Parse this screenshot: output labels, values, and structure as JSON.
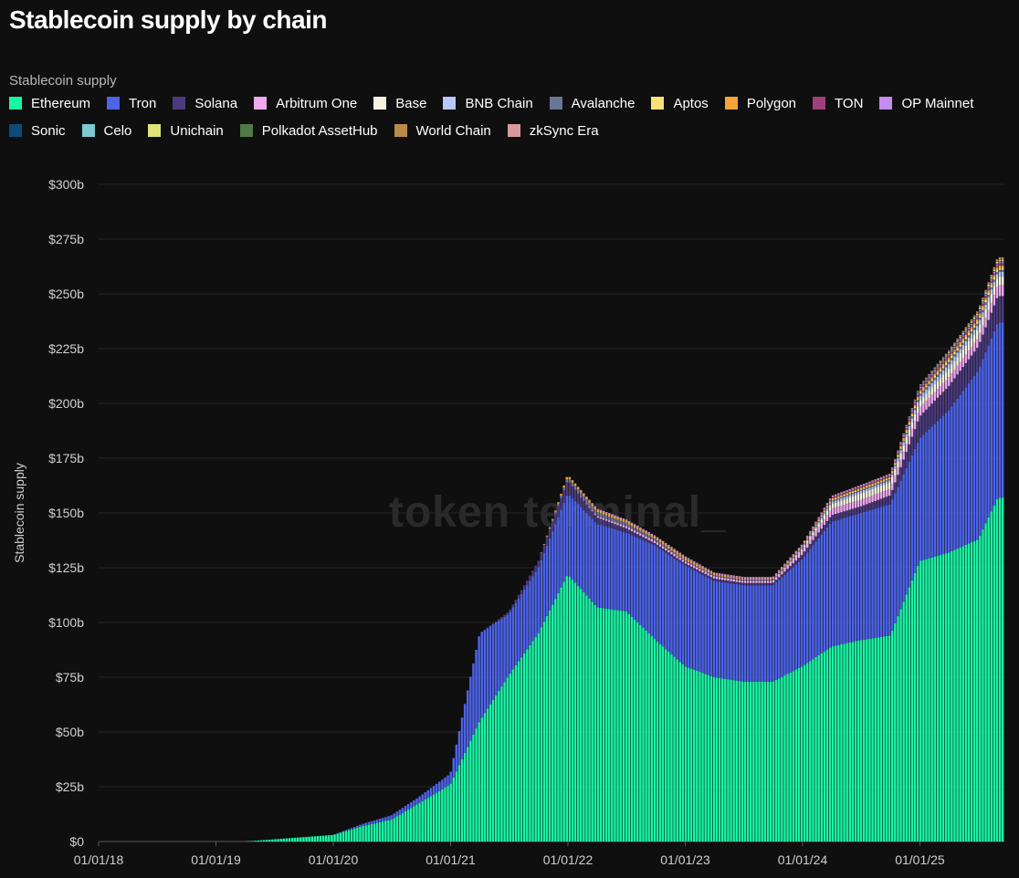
{
  "title": "Stablecoin supply by chain",
  "legend_title": "Stablecoin supply",
  "watermark": "token terminal_",
  "chart_data": {
    "type": "bar",
    "stacked": true,
    "ylabel": "Stablecoin supply",
    "ylim": [
      0,
      300
    ],
    "yticks": [
      0,
      25,
      50,
      75,
      100,
      125,
      150,
      175,
      200,
      225,
      250,
      275,
      300
    ],
    "ytick_labels": [
      "$0",
      "$25b",
      "$50b",
      "$75b",
      "$100b",
      "$125b",
      "$150b",
      "$175b",
      "$200b",
      "$225b",
      "$250b",
      "$275b",
      "$300b"
    ],
    "xtick_labels": [
      "01/01/18",
      "01/01/19",
      "01/01/20",
      "01/01/21",
      "01/01/22",
      "01/01/23",
      "01/01/24",
      "01/01/25"
    ],
    "x_dates": [
      "2018-01",
      "2018-04",
      "2018-07",
      "2018-10",
      "2019-01",
      "2019-04",
      "2019-07",
      "2019-10",
      "2020-01",
      "2020-04",
      "2020-07",
      "2020-10",
      "2021-01",
      "2021-04",
      "2021-07",
      "2021-10",
      "2022-01",
      "2022-04",
      "2022-07",
      "2022-10",
      "2023-01",
      "2023-04",
      "2023-07",
      "2023-10",
      "2024-01",
      "2024-04",
      "2024-07",
      "2024-10",
      "2025-01",
      "2025-04",
      "2025-07",
      "2025-09"
    ],
    "grid": true,
    "legend_position": "top",
    "series": [
      {
        "name": "Ethereum",
        "color": "#19f5a5",
        "values": [
          0,
          0,
          0,
          0,
          0,
          0,
          1,
          2,
          3,
          7,
          10,
          18,
          26,
          55,
          76,
          95,
          122,
          107,
          105,
          92,
          80,
          75,
          73,
          73,
          80,
          89,
          92,
          94,
          128,
          132,
          138,
          157
        ]
      },
      {
        "name": "Tron",
        "color": "#4d63e8",
        "values": [
          0,
          0,
          0,
          0,
          0,
          0,
          0,
          0,
          0,
          1,
          2,
          3,
          5,
          40,
          28,
          30,
          37,
          38,
          36,
          43,
          46,
          44,
          44,
          44,
          49,
          57,
          58,
          60,
          56,
          65,
          77,
          80
        ]
      },
      {
        "name": "Solana",
        "color": "#4b3b7d",
        "values": [
          0,
          0,
          0,
          0,
          0,
          0,
          0,
          0,
          0,
          0,
          0,
          0,
          0,
          0,
          1,
          3,
          6,
          3,
          2,
          1,
          1,
          1,
          1,
          1,
          2,
          3,
          3,
          4,
          10,
          11,
          11,
          12
        ]
      },
      {
        "name": "Arbitrum One",
        "color": "#f0a8f0",
        "values": [
          0,
          0,
          0,
          0,
          0,
          0,
          0,
          0,
          0,
          0,
          0,
          0,
          0,
          0,
          0,
          0,
          0,
          0.5,
          1,
          1,
          1,
          1,
          1,
          1,
          2,
          3,
          3,
          3,
          4,
          4,
          4,
          5
        ]
      },
      {
        "name": "Base",
        "color": "#f5f2e0",
        "values": [
          0,
          0,
          0,
          0,
          0,
          0,
          0,
          0,
          0,
          0,
          0,
          0,
          0,
          0,
          0,
          0,
          0,
          0,
          0,
          0,
          0,
          0,
          0,
          0,
          0.5,
          2,
          3,
          3,
          3,
          4,
          4,
          4
        ]
      },
      {
        "name": "BNB Chain",
        "color": "#b7c8ff",
        "values": [
          0,
          0,
          0,
          0,
          0,
          0,
          0,
          0,
          0,
          0,
          0,
          0,
          0,
          0,
          0,
          0,
          0,
          0,
          0,
          0,
          0,
          0,
          0,
          0,
          0.5,
          1,
          1,
          1,
          2,
          2,
          2,
          2
        ]
      },
      {
        "name": "Avalanche",
        "color": "#6a7696",
        "values": [
          0,
          0,
          0,
          0,
          0,
          0,
          0,
          0,
          0,
          0,
          0,
          0,
          0,
          0,
          0,
          0,
          1.5,
          2,
          1.5,
          1,
          0.5,
          0.5,
          0.5,
          0.5,
          0.5,
          0.5,
          0.5,
          0.5,
          1,
          1,
          1,
          1
        ]
      },
      {
        "name": "Aptos",
        "color": "#f7e27a",
        "values": [
          0,
          0,
          0,
          0,
          0,
          0,
          0,
          0,
          0,
          0,
          0,
          0,
          0,
          0,
          0,
          0,
          0,
          0,
          0,
          0,
          0,
          0,
          0,
          0,
          0,
          0.5,
          0.5,
          0.5,
          0.5,
          1,
          1,
          1
        ]
      },
      {
        "name": "Polygon",
        "color": "#f5a43a",
        "values": [
          0,
          0,
          0,
          0,
          0,
          0,
          0,
          0,
          0,
          0,
          0,
          0,
          0,
          0,
          0,
          0,
          1,
          1,
          1,
          1,
          1,
          0.5,
          0.5,
          0.5,
          0.5,
          0.5,
          0.5,
          0.5,
          1,
          1,
          1,
          1
        ]
      },
      {
        "name": "TON",
        "color": "#a0407a",
        "values": [
          0,
          0,
          0,
          0,
          0,
          0,
          0,
          0,
          0,
          0,
          0,
          0,
          0,
          0,
          0,
          0,
          0,
          0,
          0,
          0,
          0,
          0,
          0,
          0,
          0,
          0.5,
          0.5,
          0.5,
          1,
          1,
          1,
          1
        ]
      },
      {
        "name": "OP Mainnet",
        "color": "#c58cf0",
        "values": [
          0,
          0,
          0,
          0,
          0,
          0,
          0,
          0,
          0,
          0,
          0,
          0,
          0,
          0,
          0,
          0,
          0,
          0.5,
          0.5,
          0.5,
          0.5,
          0.5,
          0.5,
          0.5,
          0.5,
          0.5,
          0.5,
          0.5,
          0.5,
          0.5,
          0.5,
          0.5
        ]
      },
      {
        "name": "Sonic",
        "color": "#0f4a78",
        "values": [
          0,
          0,
          0,
          0,
          0,
          0,
          0,
          0,
          0,
          0,
          0,
          0,
          0,
          0,
          0,
          0,
          0,
          0,
          0,
          0,
          0,
          0,
          0,
          0,
          0,
          0,
          0,
          0,
          0.3,
          0.3,
          0.3,
          0.3
        ]
      },
      {
        "name": "Celo",
        "color": "#7ec8d2",
        "values": [
          0,
          0,
          0,
          0,
          0,
          0,
          0,
          0,
          0,
          0,
          0,
          0,
          0,
          0,
          0,
          0,
          0,
          0,
          0,
          0,
          0,
          0,
          0,
          0,
          0,
          0,
          0,
          0,
          0.2,
          0.3,
          0.3,
          0.3
        ]
      },
      {
        "name": "Unichain",
        "color": "#e0e57a",
        "values": [
          0,
          0,
          0,
          0,
          0,
          0,
          0,
          0,
          0,
          0,
          0,
          0,
          0,
          0,
          0,
          0,
          0,
          0,
          0,
          0,
          0,
          0,
          0,
          0,
          0,
          0,
          0,
          0,
          0,
          0.3,
          0.5,
          0.5
        ]
      },
      {
        "name": "Polkadot AssetHub",
        "color": "#4f7a45",
        "values": [
          0,
          0,
          0,
          0,
          0,
          0,
          0,
          0,
          0,
          0,
          0,
          0,
          0,
          0,
          0,
          0,
          0,
          0,
          0,
          0,
          0,
          0,
          0,
          0,
          0,
          0,
          0,
          0,
          0.2,
          0.2,
          0.2,
          0.2
        ]
      },
      {
        "name": "World Chain",
        "color": "#b88a4a",
        "values": [
          0,
          0,
          0,
          0,
          0,
          0,
          0,
          0,
          0,
          0,
          0,
          0,
          0,
          0,
          0,
          0,
          0,
          0,
          0,
          0,
          0,
          0,
          0,
          0,
          0,
          0,
          0,
          0.2,
          0.2,
          0.3,
          0.5,
          0.6
        ]
      },
      {
        "name": "zkSync Era",
        "color": "#d89a9a",
        "values": [
          0,
          0,
          0,
          0,
          0,
          0,
          0,
          0,
          0,
          0,
          0,
          0,
          0,
          0,
          0,
          0,
          0,
          0,
          0,
          0,
          0.3,
          0.3,
          0.3,
          0.3,
          0.3,
          0.3,
          0.3,
          0.3,
          0.3,
          0.3,
          0.3,
          0.3
        ]
      }
    ]
  }
}
